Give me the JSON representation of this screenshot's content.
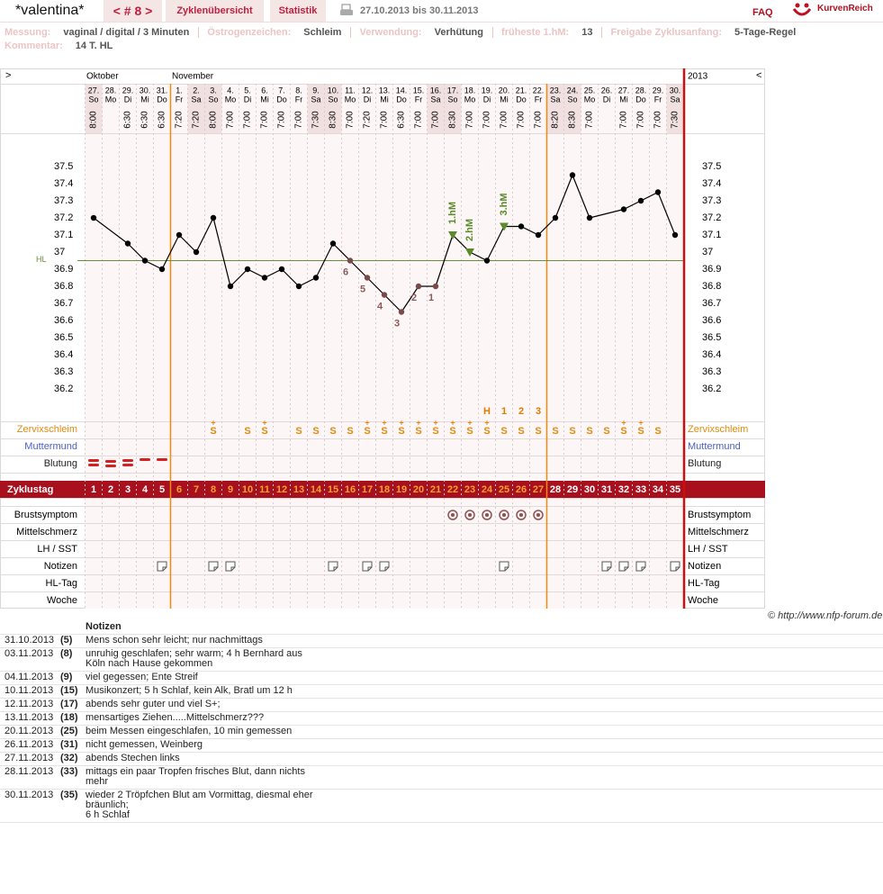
{
  "header": {
    "user": "*valentina*",
    "cycle_nav": "< # 8 >",
    "tabs": [
      "Zyklenübersicht",
      "Statistik"
    ],
    "date_range": "27.10.2013 bis 30.11.2013",
    "faq": "FAQ",
    "logo": "KurvenReich"
  },
  "info": {
    "items": [
      {
        "label": "Messung:",
        "value": "vaginal / digital / 3 Minuten"
      },
      {
        "label": "Östrogenzeichen:",
        "value": "Schleim"
      },
      {
        "label": "Verwendung:",
        "value": "Verhütung"
      },
      {
        "label": "früheste 1.hM:",
        "value": 13
      },
      {
        "label": "Freigabe Zyklusanfang:",
        "value": "5-Tage-Regel"
      }
    ],
    "comment": {
      "label": "Kommentar:",
      "value": "14 T. HL"
    }
  },
  "chart_data": {
    "type": "line",
    "nav_left": ">",
    "nav_right": "<",
    "months": [
      "Oktober",
      "November"
    ],
    "year": "2013",
    "dates": [
      "27.",
      "28.",
      "29.",
      "30.",
      "31.",
      "1.",
      "2.",
      "3.",
      "4.",
      "5.",
      "6.",
      "7.",
      "8.",
      "9.",
      "10.",
      "11.",
      "12.",
      "13.",
      "14.",
      "15.",
      "16.",
      "17.",
      "18.",
      "19.",
      "20.",
      "21.",
      "22.",
      "23.",
      "24.",
      "25.",
      "26.",
      "27.",
      "28.",
      "29.",
      "30."
    ],
    "weekdays": [
      "So",
      "Mo",
      "Di",
      "Mi",
      "Do",
      "Fr",
      "Sa",
      "So",
      "Mo",
      "Di",
      "Mi",
      "Do",
      "Fr",
      "Sa",
      "So",
      "Mo",
      "Di",
      "Mi",
      "Do",
      "Fr",
      "Sa",
      "So",
      "Mo",
      "Di",
      "Mi",
      "Do",
      "Fr",
      "Sa",
      "So",
      "Mo",
      "Di",
      "Mi",
      "Do",
      "Fr",
      "Sa"
    ],
    "times": [
      "8:00",
      null,
      "6:30",
      "6:30",
      "6:30",
      "7:20",
      "7:20",
      "8:00",
      "7:00",
      "7:00",
      "7:00",
      "7:00",
      "7:00",
      "7:30",
      "8:30",
      "7:00",
      "7:20",
      "7:00",
      "6:30",
      "7:00",
      "7:00",
      "8:30",
      "7:00",
      "7:00",
      "7:00",
      "7:00",
      "7:00",
      "8:20",
      "8:30",
      "7:00",
      null,
      "7:00",
      "7:00",
      "7:00",
      "7:30"
    ],
    "values": [
      37.2,
      null,
      37.05,
      36.95,
      36.9,
      37.1,
      37.0,
      37.2,
      36.8,
      36.9,
      36.85,
      36.9,
      36.8,
      36.85,
      37.05,
      36.95,
      36.85,
      36.75,
      36.65,
      36.8,
      36.8,
      37.1,
      37.0,
      36.95,
      37.15,
      37.15,
      37.1,
      37.2,
      37.45,
      37.2,
      null,
      37.25,
      37.3,
      37.35,
      37.1
    ],
    "color": "#000000",
    "ylim": [
      36.0,
      37.7
    ],
    "yticks": [
      36.2,
      36.3,
      36.4,
      36.5,
      36.6,
      36.7,
      36.8,
      36.9,
      37,
      37.1,
      37.2,
      37.3,
      37.4,
      37.5
    ],
    "coverline": {
      "label": "HL",
      "value": 36.95,
      "color": "#6b8e3a"
    },
    "count_labels": [
      null,
      null,
      null,
      null,
      null,
      null,
      null,
      null,
      null,
      null,
      null,
      null,
      null,
      null,
      null,
      6,
      5,
      4,
      3,
      2,
      1,
      null,
      null,
      null,
      null,
      null,
      null,
      null,
      null,
      null,
      null,
      null,
      null,
      null,
      null
    ],
    "hm_labels": [
      null,
      null,
      null,
      null,
      null,
      null,
      null,
      null,
      null,
      null,
      null,
      null,
      null,
      null,
      null,
      null,
      null,
      null,
      null,
      null,
      null,
      "1.hM",
      "2.hM",
      null,
      "3.hM",
      null,
      null,
      null,
      null,
      null,
      null,
      null,
      null,
      null,
      null
    ],
    "peak_labels": [
      null,
      null,
      null,
      null,
      null,
      null,
      null,
      null,
      null,
      null,
      null,
      null,
      null,
      null,
      null,
      null,
      null,
      null,
      null,
      null,
      null,
      null,
      null,
      "H",
      1,
      2,
      3,
      null,
      null,
      null,
      null,
      null,
      null,
      null,
      null
    ],
    "zervix_symbols": [
      null,
      null,
      null,
      null,
      null,
      null,
      null,
      "S",
      null,
      "S",
      "S",
      null,
      "S",
      "S",
      "S",
      "S",
      "S",
      "S",
      "S",
      "S",
      "S",
      "S",
      "S",
      "S",
      "S",
      "S",
      "S",
      "S",
      "S",
      "S",
      "S",
      "S",
      "S",
      "S",
      null
    ],
    "zervix_plus": [
      null,
      null,
      null,
      null,
      null,
      null,
      null,
      "+",
      null,
      null,
      "+",
      null,
      null,
      null,
      null,
      null,
      "+",
      "+",
      "+",
      "+",
      "+",
      "+",
      "+",
      "+",
      null,
      null,
      null,
      null,
      null,
      null,
      null,
      "+",
      "+",
      null,
      null
    ],
    "upper_rows": [
      "Zervixschleim",
      "Muttermund",
      "Blutung"
    ],
    "cycle_day_label": "Zyklustag",
    "cycle_days": [
      1,
      2,
      3,
      4,
      5,
      6,
      7,
      8,
      9,
      10,
      11,
      12,
      13,
      14,
      15,
      16,
      17,
      18,
      19,
      20,
      21,
      22,
      23,
      24,
      25,
      26,
      27,
      28,
      29,
      30,
      31,
      32,
      33,
      34,
      35
    ],
    "fertile_window": [
      6,
      27
    ],
    "lower_rows": [
      "Brustsymptom",
      "Mittelschmerz",
      "LH / SST",
      "Notizen",
      "HL-Tag",
      "Woche"
    ]
  },
  "footer": "© http://www.nfp-forum.de",
  "notes": {
    "title": "Notizen",
    "rows": [
      {
        "date": "31.10.2013",
        "day": {
          "value": 5,
          "label": "(5)"
        },
        "text": "Mens schon sehr leicht; nur nachmittags"
      },
      {
        "date": "03.11.2013",
        "day": {
          "value": 8,
          "label": "(8)"
        },
        "text": "unruhig geschlafen; sehr warm; 4 h Bernhard aus Köln nach Hause gekommen"
      },
      {
        "date": "04.11.2013",
        "day": {
          "value": 9,
          "label": "(9)"
        },
        "text": "viel gegessen; Ente Streif"
      },
      {
        "date": "10.11.2013",
        "day": {
          "value": 15,
          "label": "(15)"
        },
        "text": "Musikonzert; 5 h Schlaf, kein Alk, Bratl um 12 h"
      },
      {
        "date": "12.11.2013",
        "day": {
          "value": 17,
          "label": "(17)"
        },
        "text": "abends sehr guter und viel S+;"
      },
      {
        "date": "13.11.2013",
        "day": {
          "value": 18,
          "label": "(18)"
        },
        "text": "mensartiges Ziehen.....Mittelschmerz???"
      },
      {
        "date": "20.11.2013",
        "day": {
          "value": 25,
          "label": "(25)"
        },
        "text": "beim Messen eingeschlafen, 10 min gemessen"
      },
      {
        "date": "26.11.2013",
        "day": {
          "value": 31,
          "label": "(31)"
        },
        "text": "nicht gemessen, Weinberg"
      },
      {
        "date": "27.11.2013",
        "day": {
          "value": 32,
          "label": "(32)"
        },
        "text": "abends Stechen links"
      },
      {
        "date": "28.11.2013",
        "day": {
          "value": 33,
          "label": "(33)"
        },
        "text": "mittags ein paar Tropfen frisches Blut, dann nichts mehr"
      },
      {
        "date": "30.11.2013",
        "day": {
          "value": 35,
          "label": "(35)"
        },
        "text": "wieder 2 Tröpfchen Blut am Vormittag, diesmal eher bräunlich;\n6 h Schlaf"
      }
    ]
  }
}
